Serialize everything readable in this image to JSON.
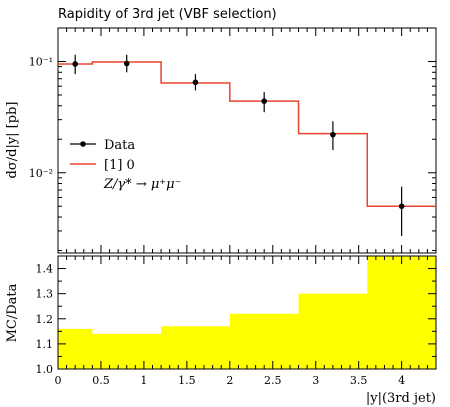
{
  "chart_data": [
    {
      "type": "line",
      "title": "Rapidity of 3rd jet (VBF selection)",
      "ylabel": "dσ/d|y| [pb]",
      "yscale": "log",
      "ylim": [
        0.0019,
        0.2
      ],
      "xlim": [
        0,
        4.4
      ],
      "y_tick_labels": [
        "10⁻¹",
        "10⁻²"
      ],
      "y_tick_values": [
        0.1,
        0.01
      ],
      "legend": [
        "Data",
        "[1] 0",
        "Z/γ* → μ⁺μ⁻"
      ],
      "legend_position": "middle-left",
      "colors": {
        "data": "#000000",
        "mc": "#e8452c"
      },
      "series": [
        {
          "name": "Data",
          "x": [
            0.2,
            0.8,
            1.6,
            2.4,
            3.2,
            4.0
          ],
          "y": [
            0.095,
            0.096,
            0.065,
            0.044,
            0.022,
            0.005
          ],
          "yerr_low": [
            0.077,
            0.08,
            0.055,
            0.035,
            0.016,
            0.0027
          ],
          "yerr_high": [
            0.115,
            0.115,
            0.077,
            0.053,
            0.029,
            0.0075
          ]
        },
        {
          "name": "[1] 0",
          "bin_edges": [
            0,
            0.4,
            1.2,
            2.0,
            2.8,
            3.6,
            4.4
          ],
          "values": [
            0.095,
            0.099,
            0.064,
            0.044,
            0.0225,
            0.005
          ]
        }
      ]
    },
    {
      "type": "area",
      "ylabel": "MC/Data",
      "xlabel": "|y|(3rd jet)",
      "ylim": [
        1.0,
        1.45
      ],
      "xlim": [
        0,
        4.4
      ],
      "x_ticks": [
        "0",
        "0.5",
        "1",
        "1.5",
        "2",
        "2.5",
        "3",
        "3.5",
        "4"
      ],
      "y_ticks": [
        "1.0",
        "1.1",
        "1.2",
        "1.3",
        "1.4"
      ],
      "colors": {
        "fill": "#ffff00"
      },
      "bin_edges": [
        0,
        0.4,
        1.2,
        2.0,
        2.8,
        3.6,
        4.4
      ],
      "values": [
        1.16,
        1.14,
        1.17,
        1.22,
        1.3,
        1.45
      ]
    }
  ]
}
